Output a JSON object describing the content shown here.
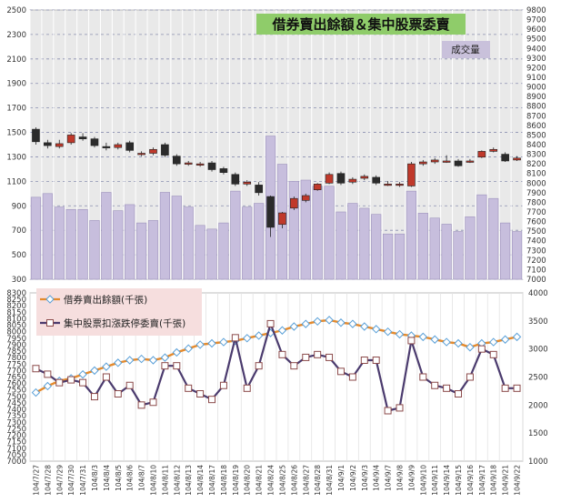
{
  "chart_data": [
    {
      "type": "candlestick+bar",
      "title": "借券賣出餘額＆集中股票委賣",
      "volume_label": "成交量",
      "left_axis": {
        "ylim": [
          300,
          2500
        ],
        "ticks": [
          300,
          500,
          700,
          900,
          1100,
          1300,
          1500,
          1700,
          1900,
          2100,
          2300,
          2500
        ]
      },
      "right_axis": {
        "ylim": [
          7000,
          9800
        ],
        "step": 100
      },
      "colors": {
        "bar": "#c7bedd",
        "bar_edge": "#9e93bd",
        "candle_up": "#c0392b",
        "candle_down": "#2b2b2b",
        "plot_bg": "#ffffff",
        "outer_bg": "#e9e9e9"
      },
      "categories": [
        "104/7/27",
        "104/7/28",
        "104/7/29",
        "104/7/30",
        "104/7/31",
        "104/8/3",
        "104/8/4",
        "104/8/5",
        "104/8/6",
        "104/8/7",
        "104/8/10",
        "104/8/11",
        "104/8/12",
        "104/8/13",
        "104/8/14",
        "104/8/17",
        "104/8/18",
        "104/8/19",
        "104/8/20",
        "104/8/21",
        "104/8/24",
        "104/8/25",
        "104/8/26",
        "104/8/27",
        "104/8/28",
        "104/8/31",
        "104/9/1",
        "104/9/2",
        "104/9/3",
        "104/9/4",
        "104/9/7",
        "104/9/8",
        "104/9/9",
        "104/9/10",
        "104/9/11",
        "104/9/14",
        "104/9/15",
        "104/9/16",
        "104/9/17",
        "104/9/18",
        "104/9/21",
        "104/9/22"
      ],
      "volume": [
        970,
        1000,
        890,
        870,
        870,
        780,
        1010,
        860,
        910,
        760,
        780,
        1010,
        980,
        890,
        740,
        710,
        760,
        1020,
        890,
        920,
        1470,
        1240,
        1100,
        1110,
        1060,
        1060,
        850,
        920,
        880,
        830,
        670,
        670,
        1020,
        840,
        800,
        750,
        690,
        810,
        990,
        960,
        760,
        690
      ],
      "candles": [
        [
          8560,
          8430,
          8580,
          8400
        ],
        [
          8420,
          8390,
          8450,
          8360
        ],
        [
          8380,
          8410,
          8450,
          8360
        ],
        [
          8420,
          8500,
          8520,
          8400
        ],
        [
          8480,
          8460,
          8520,
          8440
        ],
        [
          8460,
          8390,
          8480,
          8370
        ],
        [
          8380,
          8370,
          8420,
          8340
        ],
        [
          8370,
          8400,
          8420,
          8350
        ],
        [
          8420,
          8340,
          8440,
          8320
        ],
        [
          8300,
          8310,
          8330,
          8280
        ],
        [
          8310,
          8350,
          8370,
          8290
        ],
        [
          8400,
          8290,
          8420,
          8270
        ],
        [
          8280,
          8200,
          8300,
          8180
        ],
        [
          8200,
          8210,
          8230,
          8180
        ],
        [
          8190,
          8200,
          8220,
          8170
        ],
        [
          8210,
          8140,
          8230,
          8120
        ],
        [
          8150,
          8110,
          8170,
          8090
        ],
        [
          8090,
          7990,
          8110,
          7970
        ],
        [
          7990,
          8010,
          8030,
          7970
        ],
        [
          7980,
          7900,
          8010,
          7870
        ],
        [
          7860,
          7540,
          7870,
          7440
        ],
        [
          7570,
          7690,
          7700,
          7530
        ],
        [
          7740,
          7840,
          7860,
          7720
        ],
        [
          7820,
          7870,
          7890,
          7800
        ],
        [
          7930,
          7990,
          8000,
          7920
        ],
        [
          8000,
          8090,
          8110,
          7990
        ],
        [
          8100,
          8000,
          8120,
          7980
        ],
        [
          8010,
          8040,
          8060,
          7990
        ],
        [
          8050,
          8070,
          8090,
          8030
        ],
        [
          8060,
          8000,
          8080,
          7980
        ],
        [
          7990,
          7990,
          8020,
          7970
        ],
        [
          7980,
          7990,
          8010,
          7960
        ],
        [
          7970,
          8200,
          8220,
          7960
        ],
        [
          8200,
          8220,
          8240,
          8180
        ],
        [
          8220,
          8240,
          8260,
          8200
        ],
        [
          8230,
          8230,
          8290,
          8210
        ],
        [
          8230,
          8180,
          8250,
          8170
        ],
        [
          8220,
          8230,
          8250,
          8210
        ],
        [
          8270,
          8330,
          8340,
          8260
        ],
        [
          8330,
          8350,
          8370,
          8320
        ],
        [
          8300,
          8230,
          8320,
          8220
        ],
        [
          8240,
          8260,
          8280,
          8230
        ]
      ]
    },
    {
      "type": "line",
      "left_axis": {
        "ylim": [
          7000,
          8300
        ],
        "step": 50
      },
      "right_axis": {
        "ylim": [
          1000,
          4000
        ],
        "ticks": [
          1000,
          1500,
          2000,
          2500,
          3000,
          3500,
          4000
        ]
      },
      "series": [
        {
          "name": "借券賣出餘額(千張)",
          "axis": "left",
          "color": "#e58a2c",
          "marker": "diamond",
          "values": [
            7530,
            7580,
            7620,
            7640,
            7670,
            7700,
            7730,
            7760,
            7780,
            7790,
            7780,
            7800,
            7840,
            7870,
            7900,
            7910,
            7920,
            7930,
            7950,
            7970,
            7990,
            8010,
            8040,
            8060,
            8080,
            8090,
            8070,
            8060,
            8040,
            8020,
            8000,
            7980,
            7970,
            7960,
            7940,
            7920,
            7910,
            7880,
            7910,
            7920,
            7940,
            7960
          ]
        },
        {
          "name": "集中股票扣漲跌停委賣(千張)",
          "axis": "right",
          "color": "#4b3b6e",
          "marker": "square",
          "values": [
            2650,
            2550,
            2400,
            2450,
            2400,
            2150,
            2500,
            2200,
            2350,
            2000,
            2050,
            2700,
            2700,
            2300,
            2200,
            2100,
            2350,
            3200,
            2300,
            2700,
            3450,
            2900,
            2700,
            2850,
            2900,
            2850,
            2600,
            2500,
            2800,
            2800,
            1900,
            1950,
            3150,
            2500,
            2350,
            2300,
            2200,
            2500,
            3000,
            2900,
            2300,
            2300
          ]
        }
      ]
    }
  ]
}
